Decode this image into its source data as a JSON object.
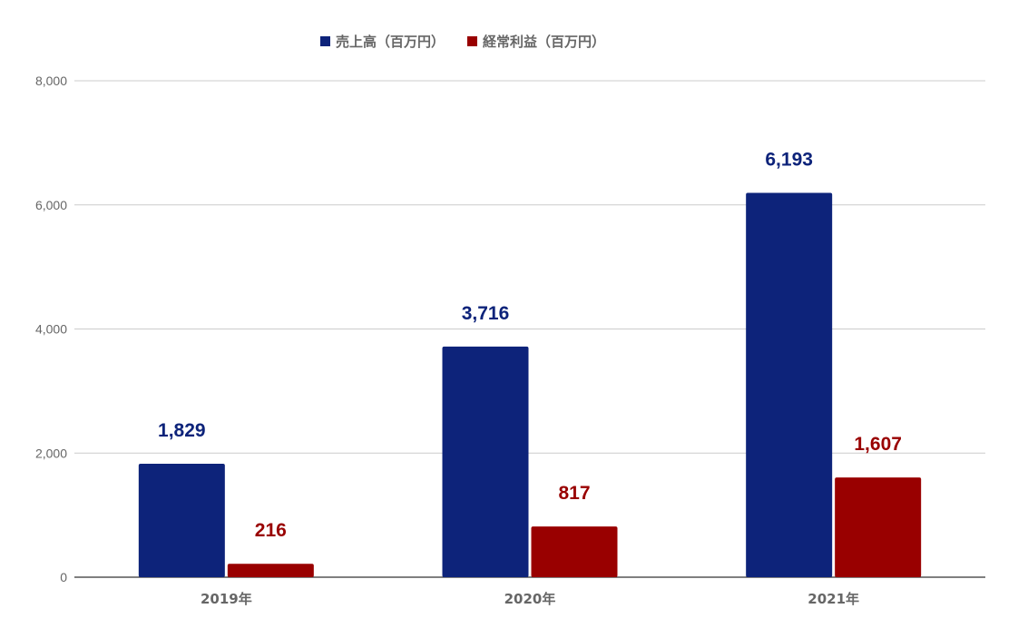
{
  "chart_data": {
    "type": "bar",
    "categories": [
      "2019年",
      "2020年",
      "2021年"
    ],
    "series": [
      {
        "name": "売上高（百万円）",
        "color": "#0d237a",
        "values": [
          1829,
          3716,
          6193
        ],
        "labels": [
          "1,829",
          "3,716",
          "6,193"
        ]
      },
      {
        "name": "経常利益（百万円）",
        "color": "#990000",
        "values": [
          216,
          817,
          1607
        ],
        "labels": [
          "216",
          "817",
          "1,607"
        ]
      }
    ],
    "ylim": [
      0,
      8000
    ],
    "yticks": [
      0,
      2000,
      4000,
      6000,
      8000
    ],
    "ytick_labels": [
      "0",
      "2,000",
      "4,000",
      "6,000",
      "8,000"
    ],
    "grid": true,
    "legend_position": "top-center",
    "title": "",
    "xlabel": "",
    "ylabel": ""
  }
}
